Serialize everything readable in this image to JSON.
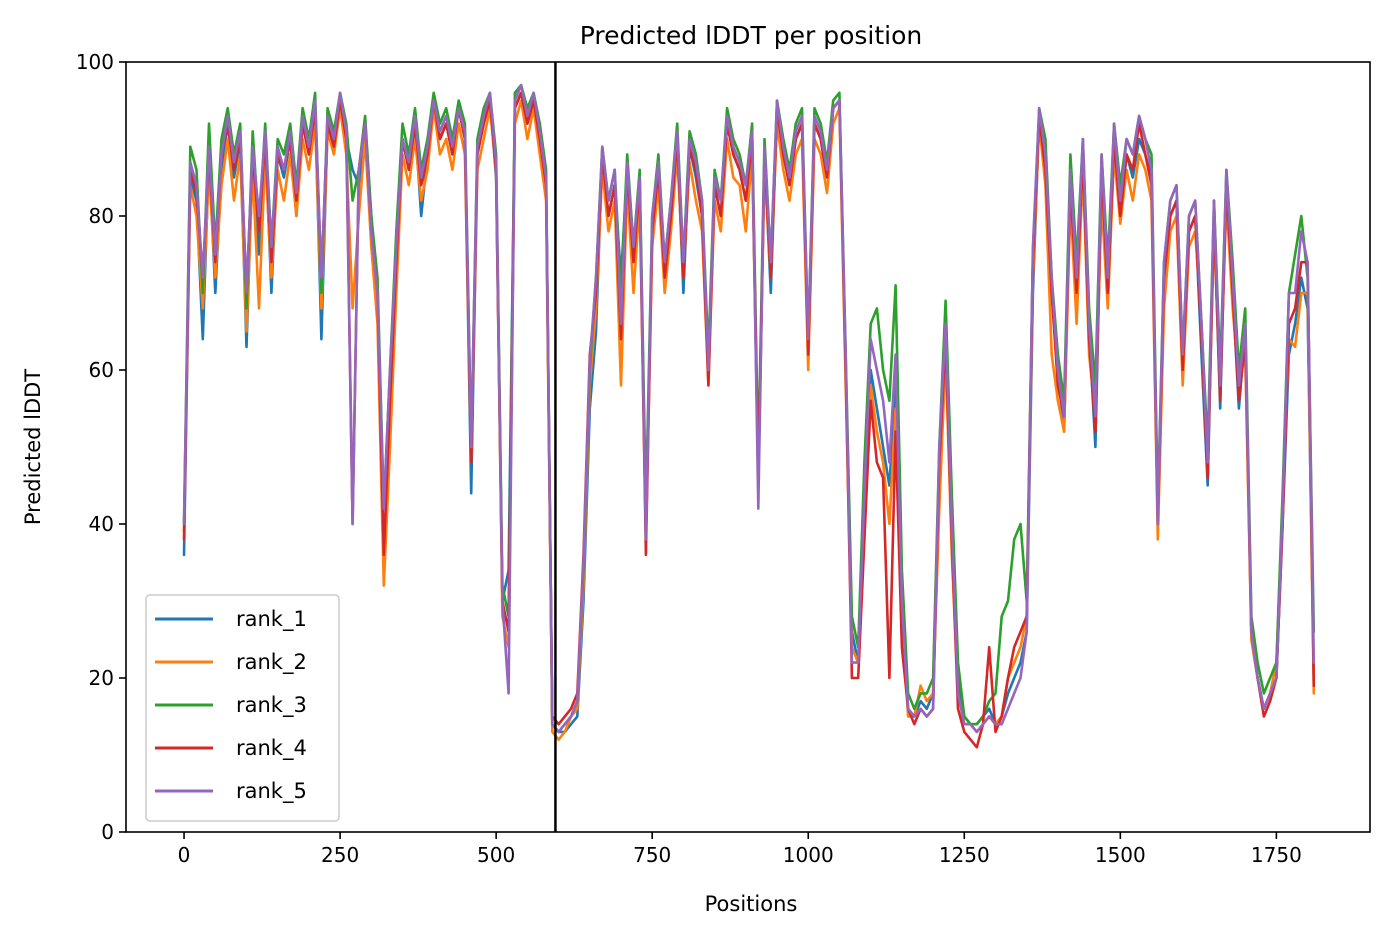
{
  "chart_data": {
    "type": "line",
    "title": "Predicted lDDT per position",
    "xlabel": "Positions",
    "ylabel": "Predicted lDDT",
    "xlim": [
      -93,
      1900
    ],
    "ylim": [
      0,
      100
    ],
    "xticks": [
      0,
      250,
      500,
      750,
      1000,
      1250,
      1500,
      1750
    ],
    "yticks": [
      0,
      20,
      40,
      60,
      80,
      100
    ],
    "legend_position": "lower-left",
    "chain_boundary_x": 595,
    "x": [
      0,
      10,
      20,
      30,
      40,
      50,
      60,
      70,
      80,
      90,
      100,
      110,
      120,
      130,
      140,
      150,
      160,
      170,
      180,
      190,
      200,
      210,
      220,
      230,
      240,
      250,
      260,
      270,
      280,
      290,
      300,
      310,
      320,
      330,
      340,
      350,
      360,
      370,
      380,
      390,
      400,
      410,
      420,
      430,
      440,
      450,
      460,
      470,
      480,
      490,
      500,
      510,
      520,
      530,
      540,
      550,
      560,
      570,
      580,
      590,
      600,
      610,
      620,
      630,
      640,
      650,
      660,
      670,
      680,
      690,
      700,
      710,
      720,
      730,
      740,
      750,
      760,
      770,
      780,
      790,
      800,
      810,
      820,
      830,
      840,
      850,
      860,
      870,
      880,
      890,
      900,
      910,
      920,
      930,
      940,
      950,
      960,
      970,
      980,
      990,
      1000,
      1010,
      1020,
      1030,
      1040,
      1050,
      1060,
      1070,
      1080,
      1090,
      1100,
      1110,
      1120,
      1130,
      1140,
      1150,
      1160,
      1170,
      1180,
      1190,
      1200,
      1210,
      1220,
      1230,
      1240,
      1250,
      1260,
      1270,
      1280,
      1290,
      1300,
      1310,
      1320,
      1330,
      1340,
      1350,
      1360,
      1370,
      1380,
      1390,
      1400,
      1410,
      1420,
      1430,
      1440,
      1450,
      1460,
      1470,
      1480,
      1490,
      1500,
      1510,
      1520,
      1530,
      1540,
      1550,
      1560,
      1570,
      1580,
      1590,
      1600,
      1610,
      1620,
      1630,
      1640,
      1650,
      1660,
      1670,
      1680,
      1690,
      1700,
      1710,
      1720,
      1730,
      1740,
      1750,
      1760,
      1770,
      1780,
      1790,
      1800,
      1810
    ],
    "series": [
      {
        "name": "rank_1",
        "color": "#1f77b4",
        "values": [
          36,
          85,
          82,
          64,
          88,
          70,
          86,
          92,
          85,
          90,
          63,
          88,
          75,
          90,
          70,
          88,
          85,
          90,
          80,
          92,
          88,
          94,
          64,
          92,
          89,
          95,
          90,
          86,
          84,
          92,
          80,
          70,
          34,
          58,
          72,
          90,
          86,
          92,
          80,
          88,
          95,
          90,
          92,
          88,
          94,
          90,
          44,
          88,
          92,
          95,
          85,
          30,
          34,
          94,
          96,
          92,
          95,
          90,
          84,
          14,
          13,
          13,
          14,
          15,
          30,
          55,
          65,
          88,
          80,
          84,
          72,
          86,
          75,
          84,
          40,
          78,
          86,
          72,
          80,
          90,
          70,
          89,
          85,
          80,
          60,
          84,
          80,
          92,
          88,
          86,
          82,
          90,
          45,
          88,
          70,
          94,
          88,
          84,
          90,
          92,
          62,
          92,
          90,
          85,
          94,
          95,
          60,
          26,
          22,
          42,
          60,
          55,
          50,
          45,
          58,
          30,
          16,
          15,
          17,
          16,
          18,
          45,
          65,
          40,
          20,
          15,
          14,
          14,
          15,
          16,
          14,
          15,
          18,
          20,
          22,
          26,
          70,
          93,
          88,
          70,
          60,
          52,
          85,
          70,
          88,
          65,
          50,
          85,
          70,
          90,
          80,
          88,
          85,
          90,
          88,
          85,
          40,
          70,
          80,
          82,
          60,
          78,
          80,
          62,
          45,
          80,
          55,
          85,
          70,
          55,
          65,
          25,
          20,
          16,
          18,
          20,
          40,
          62,
          66,
          72,
          68,
          20
        ]
      },
      {
        "name": "rank_2",
        "color": "#ff7f0e",
        "values": [
          39,
          84,
          80,
          68,
          86,
          72,
          84,
          90,
          82,
          88,
          65,
          86,
          68,
          88,
          72,
          86,
          82,
          88,
          80,
          90,
          86,
          92,
          68,
          91,
          88,
          94,
          88,
          68,
          80,
          90,
          76,
          66,
          32,
          50,
          70,
          88,
          84,
          90,
          82,
          86,
          94,
          88,
          90,
          86,
          92,
          88,
          48,
          86,
          90,
          94,
          86,
          28,
          24,
          92,
          95,
          90,
          94,
          88,
          82,
          13,
          12,
          13,
          15,
          16,
          32,
          58,
          68,
          86,
          78,
          82,
          58,
          84,
          70,
          82,
          38,
          76,
          84,
          70,
          78,
          88,
          72,
          87,
          82,
          78,
          58,
          82,
          78,
          90,
          85,
          84,
          78,
          88,
          46,
          86,
          72,
          92,
          86,
          82,
          88,
          90,
          60,
          90,
          88,
          83,
          92,
          94,
          58,
          24,
          22,
          40,
          58,
          52,
          48,
          40,
          55,
          28,
          15,
          15,
          19,
          17,
          18,
          42,
          62,
          36,
          18,
          14,
          14,
          13,
          14,
          15,
          14,
          15,
          20,
          22,
          24,
          28,
          72,
          92,
          84,
          62,
          56,
          52,
          82,
          66,
          86,
          62,
          54,
          82,
          68,
          88,
          79,
          86,
          82,
          88,
          86,
          82,
          38,
          68,
          78,
          80,
          58,
          76,
          78,
          66,
          48,
          78,
          58,
          82,
          68,
          58,
          62,
          25,
          20,
          16,
          18,
          22,
          42,
          64,
          63,
          70,
          70,
          18
        ]
      },
      {
        "name": "rank_3",
        "color": "#2ca02c",
        "values": [
          40,
          89,
          86,
          70,
          92,
          76,
          90,
          94,
          88,
          92,
          68,
          91,
          78,
          92,
          76,
          90,
          88,
          92,
          84,
          94,
          90,
          96,
          70,
          94,
          91,
          96,
          92,
          82,
          86,
          93,
          80,
          72,
          42,
          60,
          78,
          92,
          88,
          94,
          86,
          90,
          96,
          92,
          94,
          90,
          95,
          92,
          50,
          90,
          94,
          96,
          88,
          32,
          28,
          96,
          97,
          94,
          96,
          92,
          86,
          14,
          13,
          14,
          15,
          17,
          34,
          60,
          72,
          89,
          82,
          86,
          70,
          88,
          76,
          86,
          42,
          80,
          88,
          74,
          82,
          92,
          74,
          91,
          88,
          82,
          62,
          86,
          82,
          94,
          90,
          88,
          84,
          92,
          48,
          90,
          74,
          95,
          90,
          86,
          92,
          94,
          64,
          94,
          92,
          87,
          95,
          96,
          62,
          28,
          24,
          48,
          66,
          68,
          60,
          56,
          71,
          34,
          18,
          16,
          18,
          18,
          20,
          50,
          69,
          44,
          22,
          15,
          14,
          14,
          15,
          17,
          18,
          28,
          30,
          38,
          40,
          30,
          75,
          94,
          90,
          72,
          62,
          56,
          88,
          74,
          90,
          68,
          58,
          88,
          74,
          92,
          84,
          90,
          88,
          93,
          90,
          88,
          42,
          74,
          82,
          84,
          62,
          80,
          82,
          66,
          50,
          82,
          60,
          86,
          74,
          60,
          68,
          28,
          22,
          18,
          20,
          22,
          44,
          70,
          75,
          80,
          72,
          26
        ]
      },
      {
        "name": "rank_4",
        "color": "#d62728",
        "values": [
          38,
          86,
          83,
          72,
          88,
          74,
          88,
          92,
          86,
          90,
          70,
          88,
          78,
          90,
          74,
          88,
          86,
          90,
          82,
          92,
          88,
          94,
          72,
          92,
          89,
          95,
          90,
          40,
          86,
          92,
          78,
          70,
          36,
          56,
          74,
          90,
          86,
          92,
          84,
          88,
          95,
          90,
          92,
          88,
          94,
          90,
          48,
          88,
          92,
          95,
          86,
          30,
          26,
          94,
          96,
          92,
          95,
          90,
          84,
          15,
          14,
          15,
          16,
          18,
          36,
          62,
          70,
          88,
          80,
          84,
          64,
          86,
          74,
          84,
          36,
          78,
          86,
          72,
          80,
          90,
          72,
          89,
          86,
          80,
          58,
          84,
          80,
          92,
          88,
          86,
          82,
          90,
          46,
          88,
          72,
          94,
          88,
          84,
          90,
          92,
          62,
          92,
          90,
          85,
          94,
          95,
          60,
          20,
          20,
          38,
          56,
          48,
          46,
          20,
          52,
          24,
          16,
          14,
          16,
          15,
          16,
          48,
          64,
          38,
          16,
          13,
          12,
          11,
          14,
          24,
          13,
          15,
          20,
          24,
          26,
          28,
          74,
          93,
          86,
          70,
          58,
          54,
          84,
          70,
          88,
          64,
          52,
          86,
          70,
          90,
          80,
          88,
          86,
          92,
          88,
          84,
          40,
          72,
          80,
          82,
          60,
          78,
          80,
          64,
          46,
          80,
          56,
          84,
          70,
          56,
          64,
          26,
          20,
          15,
          17,
          20,
          40,
          66,
          68,
          74,
          74,
          19
        ]
      },
      {
        "name": "rank_5",
        "color": "#9467bd",
        "values": [
          40,
          87,
          84,
          72,
          89,
          75,
          88,
          93,
          87,
          91,
          70,
          89,
          80,
          91,
          76,
          89,
          86,
          91,
          83,
          93,
          89,
          95,
          72,
          93,
          90,
          96,
          91,
          40,
          86,
          92,
          78,
          70,
          42,
          60,
          76,
          90,
          87,
          93,
          85,
          89,
          95,
          91,
          93,
          89,
          94,
          91,
          50,
          89,
          93,
          96,
          87,
          30,
          18,
          95,
          97,
          93,
          96,
          91,
          85,
          14,
          13,
          14,
          15,
          17,
          35,
          61,
          72,
          89,
          82,
          86,
          66,
          87,
          76,
          85,
          38,
          80,
          87,
          74,
          82,
          91,
          74,
          90,
          87,
          82,
          60,
          85,
          82,
          93,
          89,
          87,
          84,
          91,
          42,
          89,
          74,
          95,
          89,
          85,
          91,
          93,
          64,
          93,
          91,
          86,
          94,
          95,
          62,
          22,
          22,
          44,
          64,
          60,
          56,
          48,
          62,
          30,
          16,
          15,
          16,
          15,
          16,
          50,
          66,
          40,
          18,
          14,
          14,
          13,
          14,
          15,
          14,
          14,
          16,
          18,
          20,
          26,
          76,
          94,
          88,
          72,
          60,
          54,
          86,
          72,
          90,
          66,
          54,
          88,
          72,
          92,
          82,
          90,
          88,
          93,
          90,
          86,
          40,
          74,
          82,
          84,
          62,
          80,
          82,
          66,
          48,
          82,
          58,
          86,
          72,
          58,
          66,
          26,
          20,
          16,
          18,
          20,
          42,
          70,
          70,
          78,
          74,
          22
        ]
      }
    ]
  }
}
